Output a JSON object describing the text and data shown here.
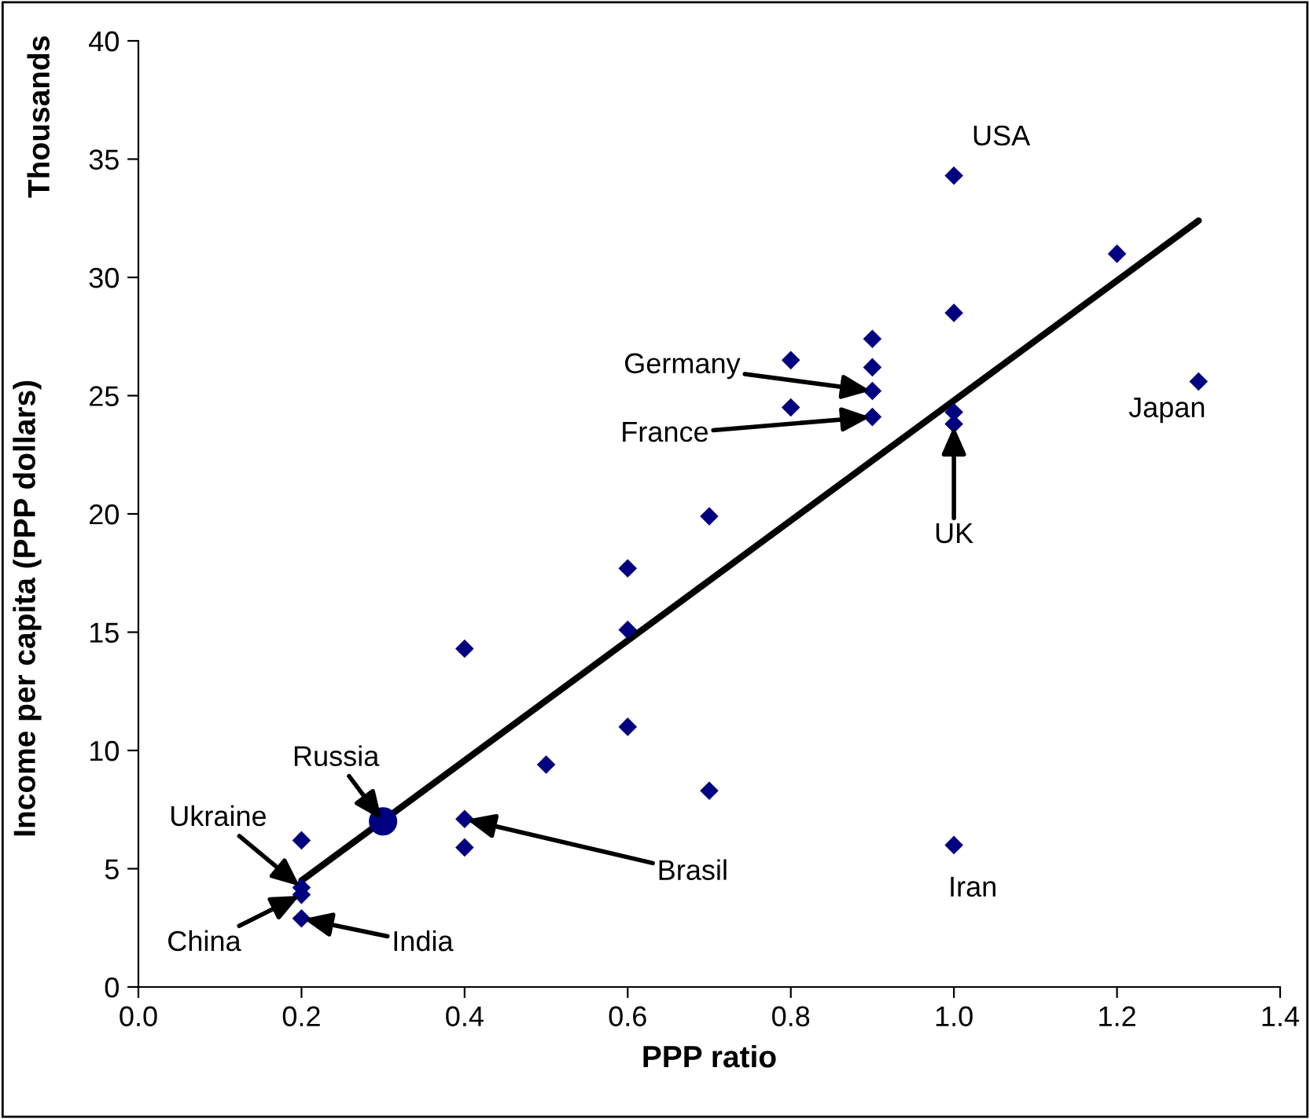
{
  "chart_data": {
    "type": "scatter",
    "xlabel": "PPP ratio",
    "ylabel": "Income per capita (PPP dollars)",
    "series": [
      {
        "marker": "diamond",
        "color": "#000080",
        "x": [
          0.2,
          0.2,
          0.2,
          0.2,
          0.4,
          0.4,
          0.4,
          0.5,
          0.6,
          0.6,
          0.6,
          0.7,
          0.7,
          0.8,
          0.8,
          0.9,
          0.9,
          0.9,
          0.9,
          1.0,
          1.0,
          1.0,
          1.0,
          1.0,
          1.2,
          1.3
        ],
        "values": [
          6.2,
          4.2,
          3.9,
          2.9,
          14.3,
          7.1,
          5.9,
          9.4,
          17.7,
          15.1,
          11.0,
          19.9,
          8.3,
          26.5,
          24.5,
          27.4,
          26.2,
          25.2,
          24.1,
          34.3,
          28.5,
          24.3,
          23.8,
          6.0,
          31.0,
          25.6
        ]
      },
      {
        "marker": "circle",
        "color": "#000080",
        "x": [
          0.3
        ],
        "values": [
          7.0
        ]
      },
      {
        "type": "line",
        "marker": "none",
        "color": "#000000",
        "x": [
          0.2,
          1.3
        ],
        "values": [
          4.5,
          32.4
        ]
      }
    ],
    "annotations": [
      {
        "text": "USA",
        "x": 1.0,
        "y": 34.3
      },
      {
        "text": "Japan",
        "x": 1.3,
        "y": 25.6
      },
      {
        "text": "Germany",
        "x": 0.9,
        "y": 25.2
      },
      {
        "text": "France",
        "x": 0.9,
        "y": 24.1
      },
      {
        "text": "UK",
        "x": 1.0,
        "y": 23.8
      },
      {
        "text": "Russia",
        "x": 0.3,
        "y": 7.0
      },
      {
        "text": "Ukraine",
        "x": 0.2,
        "y": 4.2
      },
      {
        "text": "China",
        "x": 0.2,
        "y": 3.9
      },
      {
        "text": "India",
        "x": 0.2,
        "y": 2.9
      },
      {
        "text": "Brasil",
        "x": 0.4,
        "y": 7.1
      },
      {
        "text": "Iran",
        "x": 1.0,
        "y": 6.0
      },
      "Thousands"
    ],
    "xlim": [
      0,
      1.4
    ],
    "ylim": [
      0,
      40
    ],
    "xticks": [
      {
        "value": 0,
        "label": "0.0"
      },
      {
        "value": 0.2,
        "label": "0.2"
      },
      {
        "value": 0.4,
        "label": "0.4"
      },
      {
        "value": 0.6,
        "label": "0.6"
      },
      {
        "value": 0.8,
        "label": "0.8"
      },
      {
        "value": 1.0,
        "label": "1.0"
      },
      {
        "value": 1.2,
        "label": "1.2"
      },
      {
        "value": 1.4,
        "label": "1.4"
      }
    ],
    "yticks": [
      0,
      5,
      10,
      15,
      20,
      25,
      30,
      35,
      40
    ],
    "grid": false,
    "legend": false
  }
}
